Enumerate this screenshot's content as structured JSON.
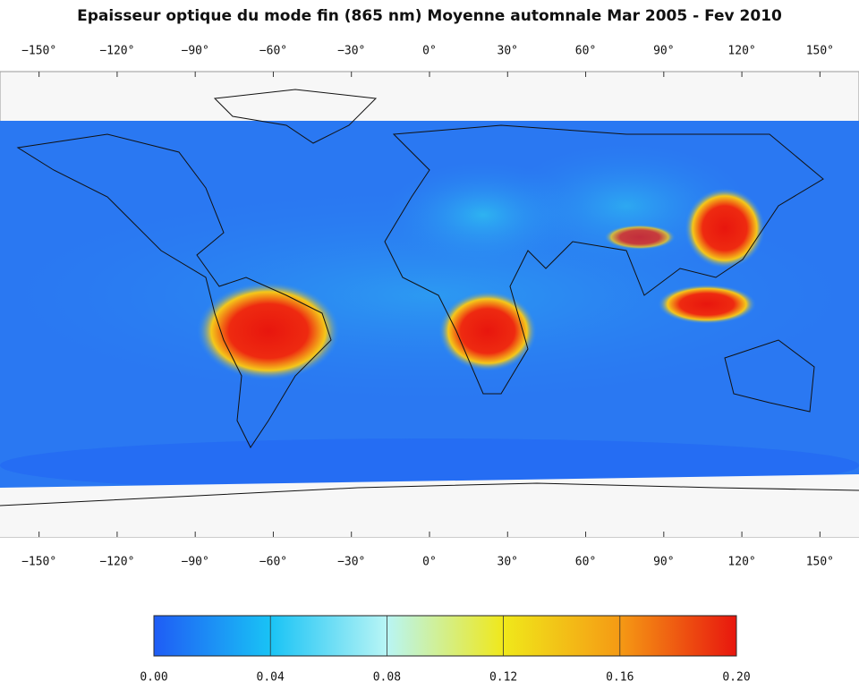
{
  "title": "Epaisseur optique du mode fin (865 nm) Moyenne automnale Mar 2005 - Fev 2010",
  "map": {
    "xlim": [
      -165,
      165
    ],
    "xticks": [
      {
        "value": -150,
        "label": "−150°"
      },
      {
        "value": -120,
        "label": "−120°"
      },
      {
        "value": -90,
        "label": "−90°"
      },
      {
        "value": -60,
        "label": "−60°"
      },
      {
        "value": -30,
        "label": "−30°"
      },
      {
        "value": 0,
        "label": "0°"
      },
      {
        "value": 30,
        "label": "30°"
      },
      {
        "value": 60,
        "label": "60°"
      },
      {
        "value": 90,
        "label": "90°"
      },
      {
        "value": 120,
        "label": "120°"
      },
      {
        "value": 150,
        "label": "150°"
      }
    ]
  },
  "colorbar": {
    "lim": [
      0,
      0.2
    ],
    "ticks": [
      {
        "value": 0,
        "label": "0.00"
      },
      {
        "value": 0.04,
        "label": "0.04"
      },
      {
        "value": 0.08,
        "label": "0.08"
      },
      {
        "value": 0.12,
        "label": "0.12"
      },
      {
        "value": 0.16,
        "label": "0.16"
      },
      {
        "value": 0.2,
        "label": "0.20"
      }
    ],
    "colors": [
      "#1f5cf5",
      "#19c3f5",
      "#b8f5f5",
      "#f0e81a",
      "#f59a14",
      "#e8160e"
    ]
  }
}
